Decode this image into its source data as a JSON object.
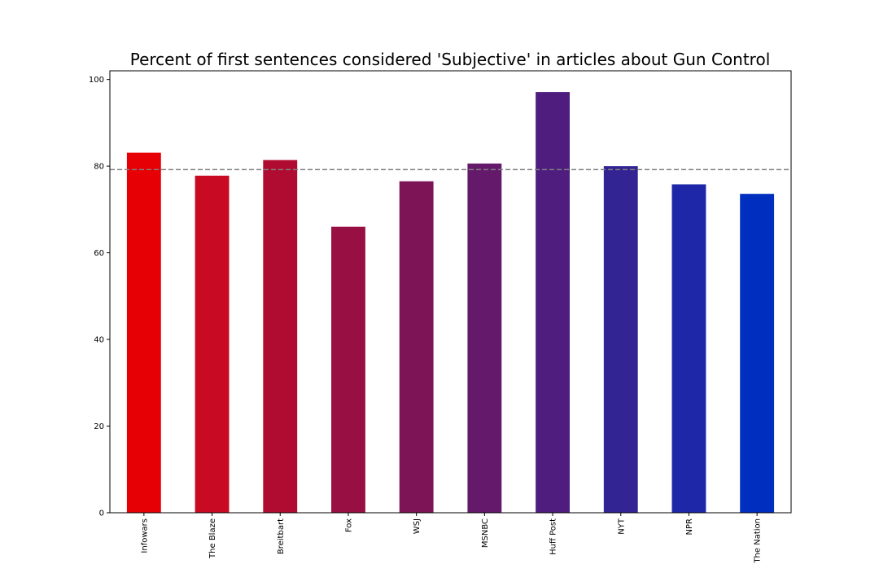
{
  "chart_data": {
    "type": "bar",
    "title": "Percent of first sentences considered 'Subjective' in articles about Gun Control",
    "xlabel": "",
    "ylabel": "",
    "categories": [
      "Infowars",
      "The Blaze",
      "Breitbart",
      "Fox",
      "WSJ",
      "MSNBC",
      "Huff Post",
      "NYT",
      "NPR",
      "The Nation"
    ],
    "values": [
      83.1,
      77.8,
      81.4,
      66.0,
      76.5,
      80.6,
      97.1,
      80.0,
      75.8,
      73.6
    ],
    "colors": [
      "#e60005",
      "#c90a23",
      "#b00c31",
      "#970f43",
      "#7d1456",
      "#65196a",
      "#4e1d7e",
      "#332493",
      "#1d27a8",
      "#002ebf"
    ],
    "reference_line": {
      "value": 79.2,
      "color": "#808080",
      "style": "dashed"
    },
    "ylim": [
      0,
      102
    ],
    "yticks": [
      0,
      20,
      40,
      60,
      80,
      100
    ],
    "grid": false,
    "legend": "none"
  }
}
